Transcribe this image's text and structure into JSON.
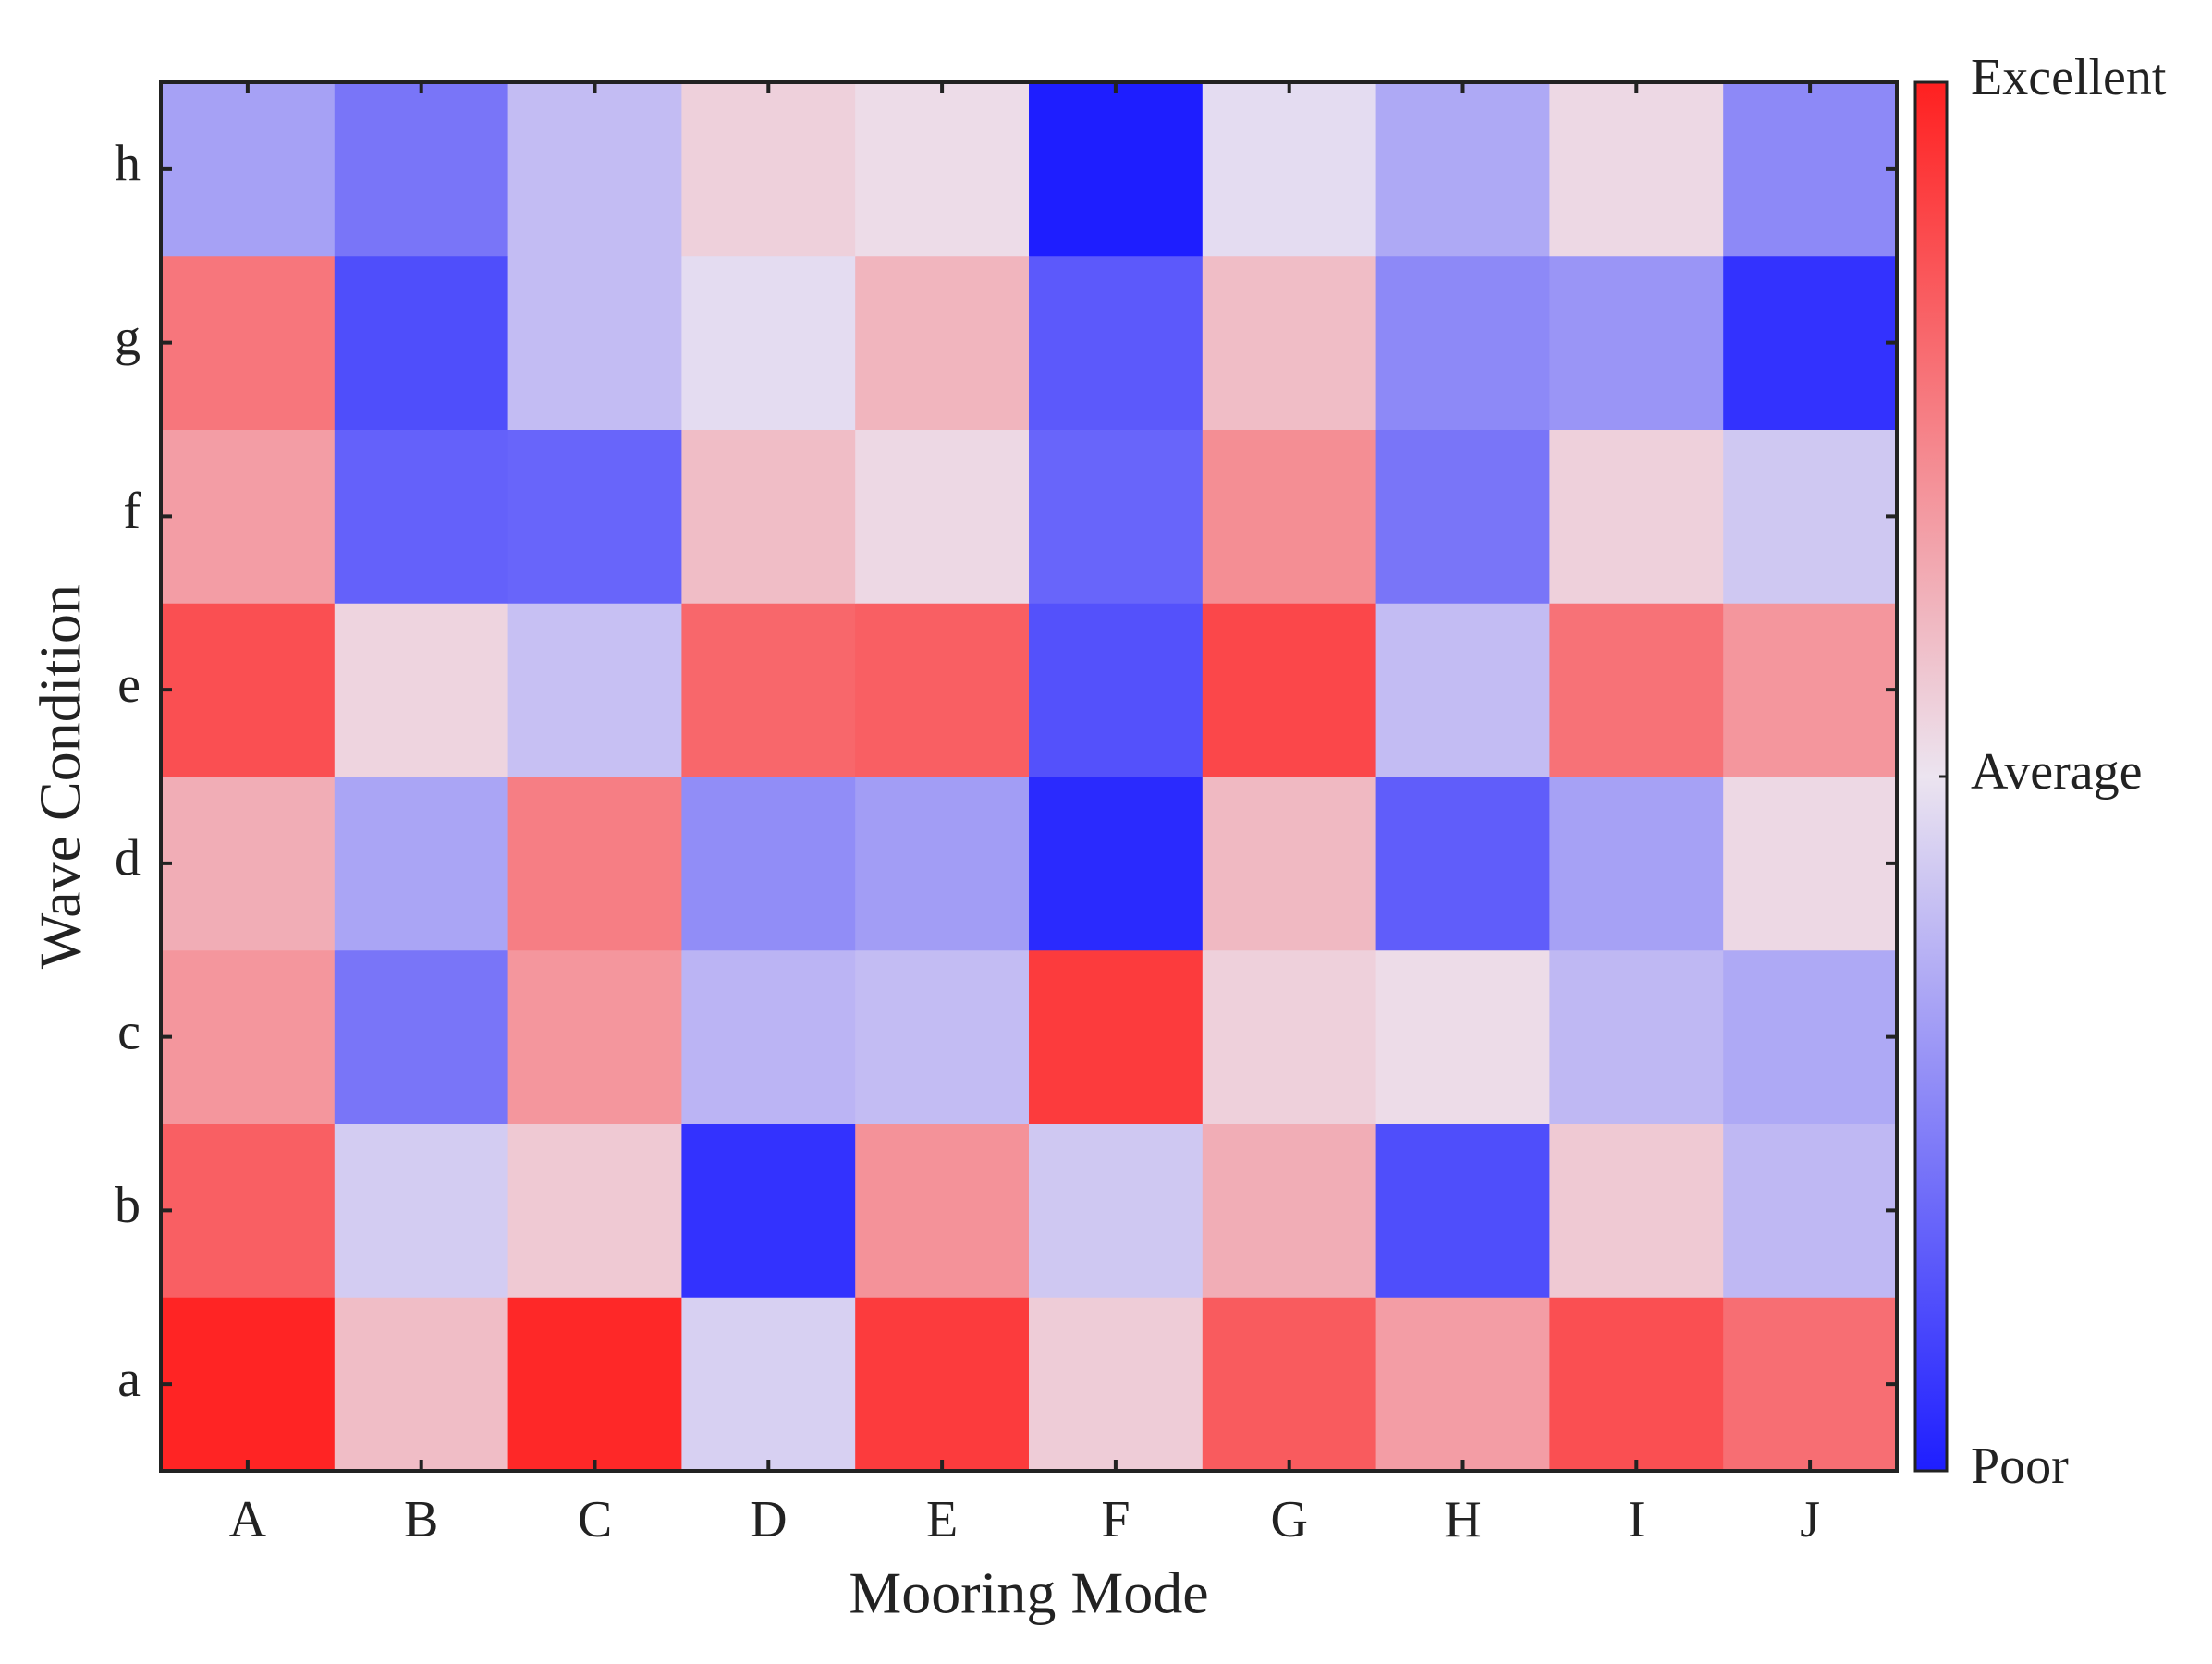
{
  "chart_data": {
    "type": "heatmap",
    "xlabel": "Mooring Mode",
    "ylabel": "Wave Condition",
    "x_categories": [
      "A",
      "B",
      "C",
      "D",
      "E",
      "F",
      "G",
      "H",
      "I",
      "J"
    ],
    "y_categories": [
      "a",
      "b",
      "c",
      "d",
      "e",
      "f",
      "g",
      "h"
    ],
    "values": [
      [
        0.99,
        0.6,
        0.98,
        0.45,
        0.93,
        0.56,
        0.85,
        0.68,
        0.88,
        0.8
      ],
      [
        0.84,
        0.44,
        0.57,
        0.05,
        0.71,
        0.43,
        0.64,
        0.12,
        0.57,
        0.39
      ],
      [
        0.7,
        0.22,
        0.7,
        0.38,
        0.4,
        0.93,
        0.55,
        0.52,
        0.39,
        0.35
      ],
      [
        0.64,
        0.34,
        0.76,
        0.28,
        0.32,
        0.03,
        0.61,
        0.16,
        0.33,
        0.53
      ],
      [
        0.88,
        0.54,
        0.41,
        0.82,
        0.84,
        0.13,
        0.9,
        0.4,
        0.79,
        0.7
      ],
      [
        0.68,
        0.17,
        0.18,
        0.6,
        0.53,
        0.18,
        0.72,
        0.22,
        0.55,
        0.43
      ],
      [
        0.78,
        0.12,
        0.4,
        0.48,
        0.62,
        0.15,
        0.6,
        0.27,
        0.3,
        0.05
      ],
      [
        0.33,
        0.22,
        0.4,
        0.55,
        0.52,
        0.0,
        0.48,
        0.35,
        0.53,
        0.27
      ]
    ],
    "colormap": [
      "#1e1eff",
      "#ece4f0",
      "#ff2020"
    ],
    "clim": [
      0,
      1
    ],
    "colorbar_ticks": [
      {
        "value": 0,
        "label": "Poor"
      },
      {
        "value": 0.5,
        "label": "Average"
      },
      {
        "value": 1,
        "label": "Excellent"
      }
    ]
  }
}
